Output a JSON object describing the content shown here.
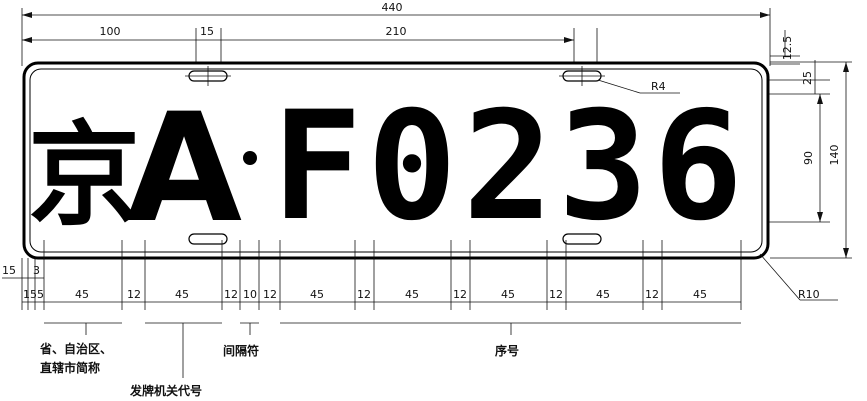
{
  "plate": {
    "province_char": "京",
    "authority_letter": "A",
    "separator_dot": "·",
    "serial": [
      "F",
      "0",
      "2",
      "3",
      "6"
    ]
  },
  "dimensions": {
    "overall_width": "440",
    "left_to_slot": "100",
    "slot_width": "15",
    "slot_spacing": "210",
    "top_offset": "12.5",
    "top_margin": "25",
    "char_height": "90",
    "plate_height": "140",
    "slot_radius": "R4",
    "corner_radius": "R10",
    "edge_offset": "15",
    "edge_inner": "3",
    "left_margins": "155",
    "char_width": "45",
    "gap": "12",
    "separator_width": "10"
  },
  "captions": {
    "province_line1": "省、自治区、",
    "province_line2": "直辖市简称",
    "authority": "发牌机关代号",
    "separator": "间隔符",
    "serial": "序号"
  }
}
